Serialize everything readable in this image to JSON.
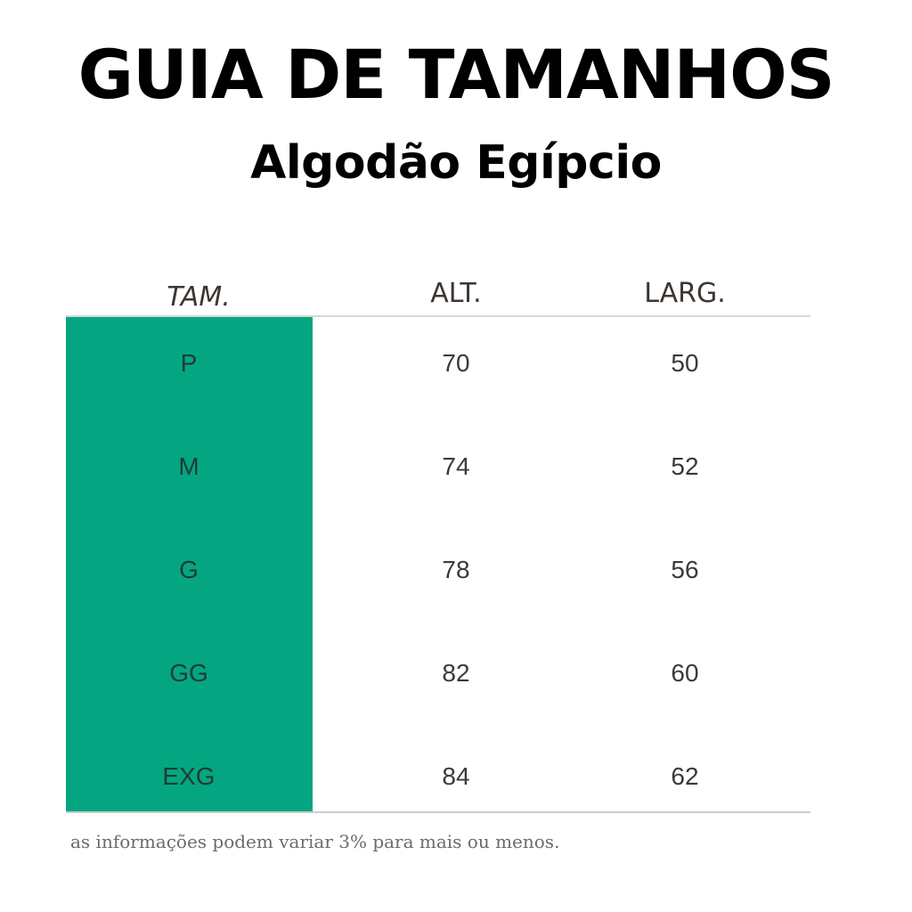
{
  "title": "GUIA DE TAMANHOS",
  "subtitle": "Algodão Egípcio",
  "colors": {
    "size_column": "#04a682",
    "text_dark": "#000000",
    "header_text": "#3e3530"
  },
  "table": {
    "headers": {
      "size": "TAM.",
      "height": "ALT.",
      "width": "LARG."
    },
    "rows": [
      {
        "size": "P",
        "height": "70",
        "width": "50"
      },
      {
        "size": "M",
        "height": "74",
        "width": "52"
      },
      {
        "size": "G",
        "height": "78",
        "width": "56"
      },
      {
        "size": "GG",
        "height": "82",
        "width": "60"
      },
      {
        "size": "EXG",
        "height": "84",
        "width": "62"
      }
    ]
  },
  "footnote": "as informações podem variar 3% para mais ou menos."
}
